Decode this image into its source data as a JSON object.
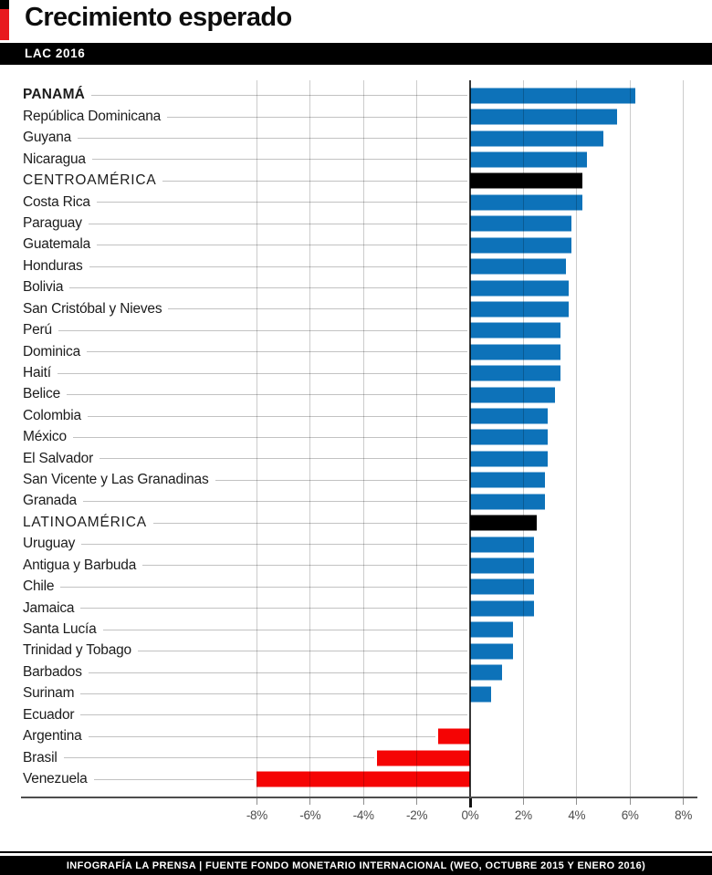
{
  "header": {
    "title": "Crecimiento esperado",
    "tag": "LAC 2016"
  },
  "footer": {
    "credit": "INFOGRAFÍA LA PRENSA | FUENTE FONDO MONETARIO INTERNACIONAL (WEO, OCTUBRE 2015 Y ENERO 2016)"
  },
  "colors": {
    "positive": "#0d72b9",
    "negative": "#f50404",
    "aggregate": "#000000",
    "accent_red": "#e8191e",
    "accent_black": "#000000"
  },
  "chart_data": {
    "type": "bar",
    "orientation": "horizontal",
    "title": "Crecimiento esperado",
    "subtitle": "LAC 2016",
    "unit": "percent",
    "xlim": [
      -8,
      8
    ],
    "grid": true,
    "x_ticks": [
      -8,
      -6,
      -4,
      -2,
      0,
      2,
      4,
      6,
      8
    ],
    "x_tick_labels": [
      "-8%",
      "-6%",
      "-4%",
      "-2%",
      "0%",
      "2%",
      "4%",
      "6%",
      "8%"
    ],
    "rows": [
      {
        "label": "PANAMÁ",
        "value": 6.2,
        "kind": "highlight"
      },
      {
        "label": "República Dominicana",
        "value": 5.5,
        "kind": "country"
      },
      {
        "label": "Guyana",
        "value": 5.0,
        "kind": "country"
      },
      {
        "label": "Nicaragua",
        "value": 4.4,
        "kind": "country"
      },
      {
        "label": "CENTROAMÉRICA",
        "value": 4.2,
        "kind": "aggregate"
      },
      {
        "label": "Costa Rica",
        "value": 4.2,
        "kind": "country"
      },
      {
        "label": "Paraguay",
        "value": 3.8,
        "kind": "country"
      },
      {
        "label": "Guatemala",
        "value": 3.8,
        "kind": "country"
      },
      {
        "label": "Honduras",
        "value": 3.6,
        "kind": "country"
      },
      {
        "label": "Bolivia",
        "value": 3.7,
        "kind": "country"
      },
      {
        "label": "San Cristóbal y Nieves",
        "value": 3.7,
        "kind": "country"
      },
      {
        "label": "Perú",
        "value": 3.4,
        "kind": "country"
      },
      {
        "label": "Dominica",
        "value": 3.4,
        "kind": "country"
      },
      {
        "label": "Haití",
        "value": 3.4,
        "kind": "country"
      },
      {
        "label": "Belice",
        "value": 3.2,
        "kind": "country"
      },
      {
        "label": "Colombia",
        "value": 2.9,
        "kind": "country"
      },
      {
        "label": "México",
        "value": 2.9,
        "kind": "country"
      },
      {
        "label": "El Salvador",
        "value": 2.9,
        "kind": "country"
      },
      {
        "label": "San Vicente y Las Granadinas",
        "value": 2.8,
        "kind": "country"
      },
      {
        "label": "Granada",
        "value": 2.8,
        "kind": "country"
      },
      {
        "label": "LATINOAMÉRICA",
        "value": 2.5,
        "kind": "aggregate"
      },
      {
        "label": "Uruguay",
        "value": 2.4,
        "kind": "country"
      },
      {
        "label": "Antigua y Barbuda",
        "value": 2.4,
        "kind": "country"
      },
      {
        "label": "Chile",
        "value": 2.4,
        "kind": "country"
      },
      {
        "label": "Jamaica",
        "value": 2.4,
        "kind": "country"
      },
      {
        "label": "Santa Lucía",
        "value": 1.6,
        "kind": "country"
      },
      {
        "label": "Trinidad y Tobago",
        "value": 1.6,
        "kind": "country"
      },
      {
        "label": "Barbados",
        "value": 1.2,
        "kind": "country"
      },
      {
        "label": "Surinam",
        "value": 0.8,
        "kind": "country"
      },
      {
        "label": "Ecuador",
        "value": 0.0,
        "kind": "country"
      },
      {
        "label": "Argentina",
        "value": -1.2,
        "kind": "country"
      },
      {
        "label": "Brasil",
        "value": -3.5,
        "kind": "country"
      },
      {
        "label": "Venezuela",
        "value": -8.0,
        "kind": "country"
      }
    ]
  }
}
